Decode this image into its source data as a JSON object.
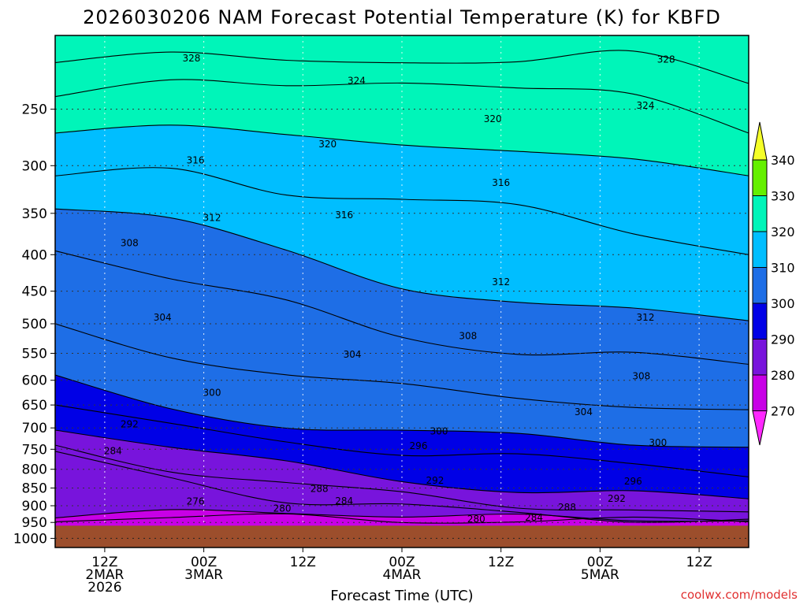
{
  "chart_data": {
    "type": "heatmap",
    "title": "2026030206 NAM Forecast Potential Temperature (K) for KBFD",
    "xlabel": "Forecast Time (UTC)",
    "ylabel": "",
    "y_axis": {
      "scale": "log",
      "direction": "decreasing-upward",
      "range": [
        1000,
        200
      ],
      "ticks": [
        250,
        300,
        350,
        400,
        450,
        500,
        550,
        600,
        650,
        700,
        750,
        800,
        850,
        900,
        950,
        1000
      ]
    },
    "x_axis": {
      "range_hours": [
        0,
        84
      ],
      "ticks": [
        {
          "hour": 6,
          "lines": [
            "12Z",
            "2MAR",
            "2026"
          ]
        },
        {
          "hour": 18,
          "lines": [
            "00Z",
            "3MAR"
          ]
        },
        {
          "hour": 30,
          "lines": [
            "12Z"
          ]
        },
        {
          "hour": 42,
          "lines": [
            "00Z",
            "4MAR"
          ]
        },
        {
          "hour": 54,
          "lines": [
            "12Z"
          ]
        },
        {
          "hour": 66,
          "lines": [
            "00Z",
            "5MAR"
          ]
        },
        {
          "hour": 78,
          "lines": [
            "12Z"
          ]
        }
      ]
    },
    "grid": true,
    "ground_color": "#9c4e2c",
    "colorbar": {
      "position": "right",
      "levels": [
        270,
        280,
        290,
        300,
        310,
        320,
        330,
        340
      ],
      "colors": [
        "#ff28ff",
        "#c800e6",
        "#7814dc",
        "#0000e6",
        "#1e6ee6",
        "#00beff",
        "#00f5b9",
        "#64f000",
        "#f5ff28"
      ],
      "labels": [
        "270",
        "280",
        "290",
        "300",
        "310",
        "320",
        "330",
        "340"
      ]
    },
    "contour_interval": 2,
    "isentropes": [
      {
        "theta": 276,
        "pressure": [
          948,
          940,
          935,
          938,
          945,
          948,
          948
        ]
      },
      {
        "theta": 280,
        "pressure": [
          936,
          925,
          915,
          925,
          938,
          945,
          945
        ]
      },
      {
        "theta": 284,
        "pressure": [
          755,
          820,
          880,
          905,
          925,
          935,
          940
        ]
      },
      {
        "theta": 288,
        "pressure": [
          740,
          795,
          840,
          870,
          895,
          910,
          918
        ]
      },
      {
        "theta": 292,
        "pressure": [
          705,
          745,
          790,
          825,
          855,
          870,
          880
        ]
      },
      {
        "theta": 296,
        "pressure": [
          650,
          700,
          730,
          755,
          770,
          790,
          820
        ]
      },
      {
        "theta": 300,
        "pressure": [
          590,
          660,
          690,
          710,
          720,
          730,
          745
        ]
      },
      {
        "theta": 304,
        "pressure": [
          500,
          550,
          590,
          615,
          630,
          650,
          660
        ]
      },
      {
        "theta": 308,
        "pressure": [
          395,
          430,
          470,
          520,
          545,
          555,
          570
        ]
      },
      {
        "theta": 312,
        "pressure": [
          345,
          360,
          395,
          440,
          470,
          480,
          495
        ]
      },
      {
        "theta": 316,
        "pressure": [
          310,
          305,
          325,
          335,
          345,
          370,
          400
        ]
      },
      {
        "theta": 320,
        "pressure": [
          270,
          260,
          270,
          285,
          285,
          290,
          310
        ]
      },
      {
        "theta": 324,
        "pressure": [
          240,
          225,
          235,
          230,
          230,
          240,
          270
        ]
      },
      {
        "theta": 328,
        "pressure": [
          215,
          210,
          215,
          212,
          215,
          210,
          230
        ]
      }
    ],
    "contour_labels": [
      {
        "text": "328",
        "hour": 16.5,
        "pressure": 212
      },
      {
        "text": "324",
        "hour": 36.5,
        "pressure": 228
      },
      {
        "text": "328",
        "hour": 74,
        "pressure": 213
      },
      {
        "text": "324",
        "hour": 71.5,
        "pressure": 247
      },
      {
        "text": "320",
        "hour": 53,
        "pressure": 258
      },
      {
        "text": "320",
        "hour": 33,
        "pressure": 280
      },
      {
        "text": "316",
        "hour": 17,
        "pressure": 295
      },
      {
        "text": "316",
        "hour": 54,
        "pressure": 317
      },
      {
        "text": "316",
        "hour": 35,
        "pressure": 352
      },
      {
        "text": "312",
        "hour": 19,
        "pressure": 355
      },
      {
        "text": "308",
        "hour": 9,
        "pressure": 385
      },
      {
        "text": "312",
        "hour": 54,
        "pressure": 437
      },
      {
        "text": "312",
        "hour": 71.5,
        "pressure": 490
      },
      {
        "text": "304",
        "hour": 13,
        "pressure": 490
      },
      {
        "text": "308",
        "hour": 50,
        "pressure": 520
      },
      {
        "text": "304",
        "hour": 36,
        "pressure": 552
      },
      {
        "text": "308",
        "hour": 71,
        "pressure": 592
      },
      {
        "text": "300",
        "hour": 19,
        "pressure": 625
      },
      {
        "text": "304",
        "hour": 64,
        "pressure": 665
      },
      {
        "text": "292",
        "hour": 9,
        "pressure": 692
      },
      {
        "text": "300",
        "hour": 46.5,
        "pressure": 708
      },
      {
        "text": "300",
        "hour": 73,
        "pressure": 734
      },
      {
        "text": "296",
        "hour": 44,
        "pressure": 742
      },
      {
        "text": "284",
        "hour": 7,
        "pressure": 754
      },
      {
        "text": "292",
        "hour": 46,
        "pressure": 830
      },
      {
        "text": "296",
        "hour": 70,
        "pressure": 832
      },
      {
        "text": "288",
        "hour": 32,
        "pressure": 852
      },
      {
        "text": "292",
        "hour": 68,
        "pressure": 880
      },
      {
        "text": "276",
        "hour": 17,
        "pressure": 888
      },
      {
        "text": "284",
        "hour": 35,
        "pressure": 886
      },
      {
        "text": "280",
        "hour": 27.5,
        "pressure": 908
      },
      {
        "text": "288",
        "hour": 62,
        "pressure": 905
      },
      {
        "text": "284",
        "hour": 58,
        "pressure": 935
      },
      {
        "text": "280",
        "hour": 51,
        "pressure": 940
      }
    ],
    "credit": "coolwx.com/models"
  }
}
